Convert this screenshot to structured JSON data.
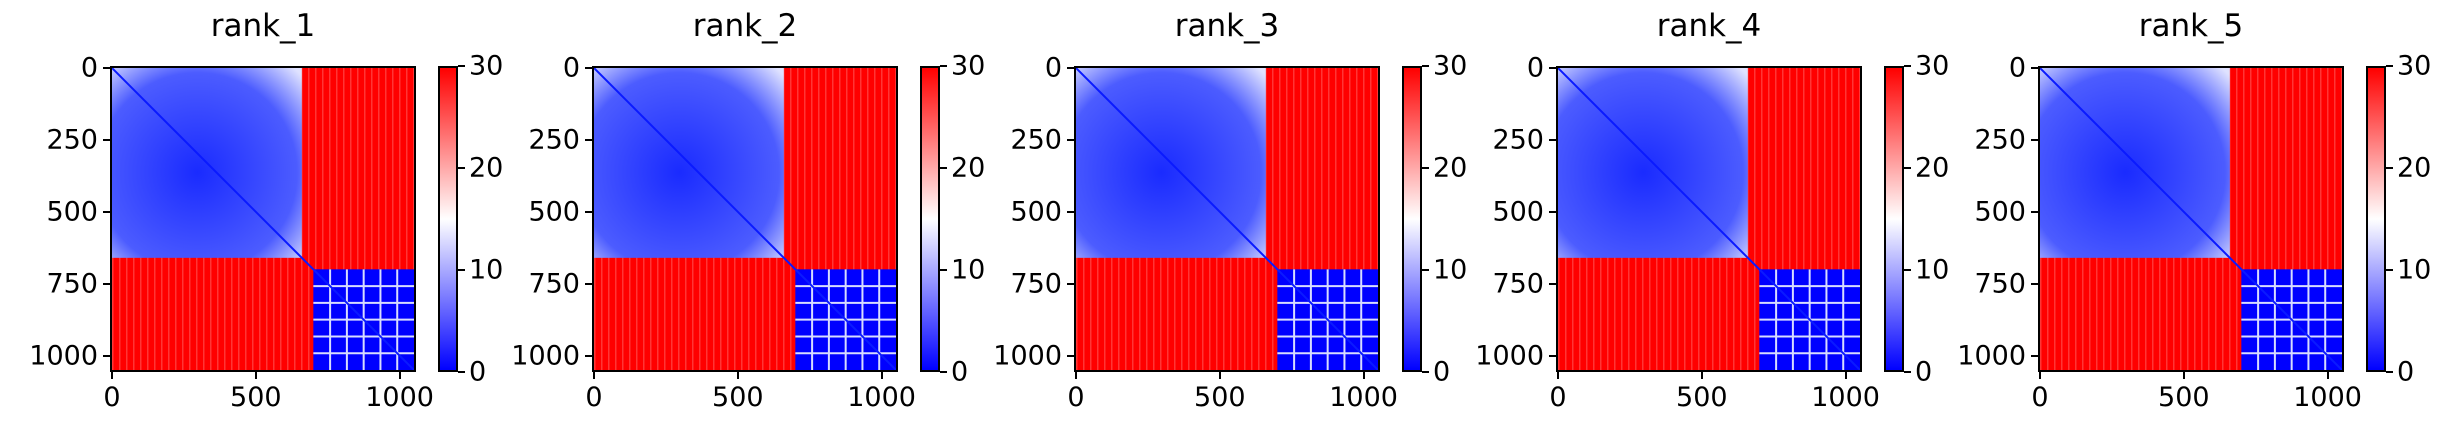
{
  "figure": {
    "colormap": "bwr",
    "colors": {
      "low": "#0000ff",
      "mid": "#ffffff",
      "high": "#ff0000"
    }
  },
  "chart_data": [
    {
      "type": "heatmap",
      "title": "rank_1",
      "xlim": [
        0,
        1050
      ],
      "ylim": [
        1050,
        0
      ],
      "xticks": [
        0,
        500,
        1000
      ],
      "yticks": [
        0,
        250,
        500,
        750,
        1000
      ],
      "colorbar": {
        "range": [
          0,
          30
        ],
        "ticks": [
          0,
          10,
          20,
          30
        ]
      },
      "blocks": [
        {
          "start": 0,
          "end": 660,
          "level": "low"
        },
        {
          "start": 700,
          "end": 1050,
          "level": "low"
        }
      ],
      "off_block_level": "high"
    },
    {
      "type": "heatmap",
      "title": "rank_2",
      "xlim": [
        0,
        1050
      ],
      "ylim": [
        1050,
        0
      ],
      "xticks": [
        0,
        500,
        1000
      ],
      "yticks": [
        0,
        250,
        500,
        750,
        1000
      ],
      "colorbar": {
        "range": [
          0,
          30
        ],
        "ticks": [
          0,
          10,
          20,
          30
        ]
      },
      "blocks": [
        {
          "start": 0,
          "end": 660,
          "level": "low"
        },
        {
          "start": 700,
          "end": 1050,
          "level": "low"
        }
      ],
      "off_block_level": "high"
    },
    {
      "type": "heatmap",
      "title": "rank_3",
      "xlim": [
        0,
        1050
      ],
      "ylim": [
        1050,
        0
      ],
      "xticks": [
        0,
        500,
        1000
      ],
      "yticks": [
        0,
        250,
        500,
        750,
        1000
      ],
      "colorbar": {
        "range": [
          0,
          30
        ],
        "ticks": [
          0,
          10,
          20,
          30
        ]
      },
      "blocks": [
        {
          "start": 0,
          "end": 660,
          "level": "low"
        },
        {
          "start": 700,
          "end": 1050,
          "level": "low"
        }
      ],
      "off_block_level": "high"
    },
    {
      "type": "heatmap",
      "title": "rank_4",
      "xlim": [
        0,
        1050
      ],
      "ylim": [
        1050,
        0
      ],
      "xticks": [
        0,
        500,
        1000
      ],
      "yticks": [
        0,
        250,
        500,
        750,
        1000
      ],
      "colorbar": {
        "range": [
          0,
          30
        ],
        "ticks": [
          0,
          10,
          20,
          30
        ]
      },
      "blocks": [
        {
          "start": 0,
          "end": 660,
          "level": "low"
        },
        {
          "start": 700,
          "end": 1050,
          "level": "low"
        }
      ],
      "off_block_level": "high"
    },
    {
      "type": "heatmap",
      "title": "rank_5",
      "xlim": [
        0,
        1050
      ],
      "ylim": [
        1050,
        0
      ],
      "xticks": [
        0,
        500,
        1000
      ],
      "yticks": [
        0,
        250,
        500,
        750,
        1000
      ],
      "colorbar": {
        "range": [
          0,
          30
        ],
        "ticks": [
          0,
          10,
          20,
          30
        ]
      },
      "blocks": [
        {
          "start": 0,
          "end": 660,
          "level": "low"
        },
        {
          "start": 700,
          "end": 1050,
          "level": "low"
        }
      ],
      "off_block_level": "high"
    }
  ]
}
